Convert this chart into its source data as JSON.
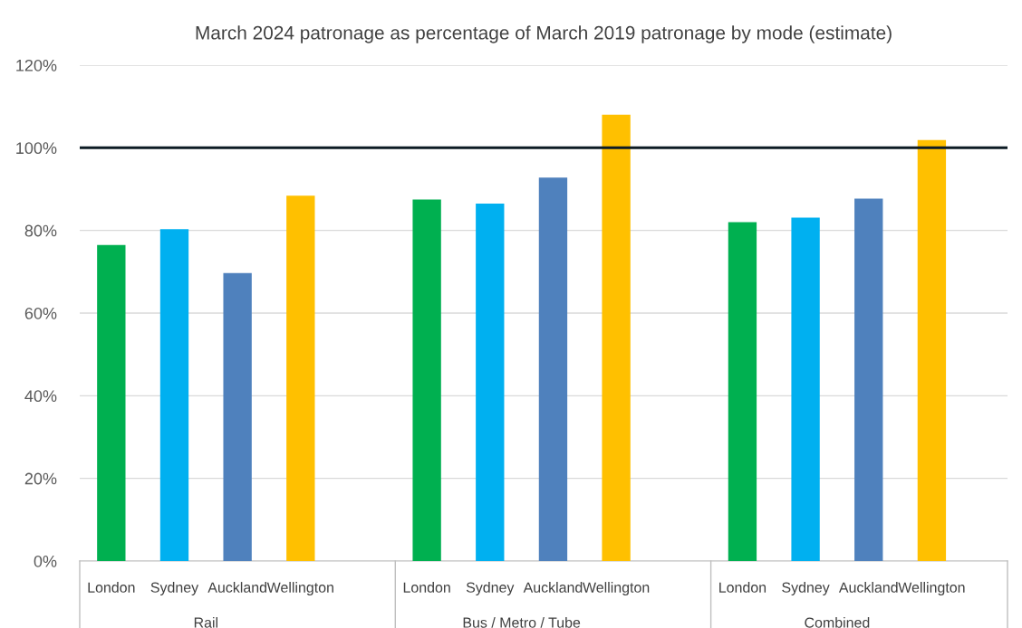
{
  "chart_data": {
    "type": "bar",
    "title": "March 2024 patronage as percentage of March 2019 patronage by mode (estimate)",
    "categories": [
      "London",
      "Sydney",
      "Auckland",
      "Wellington",
      "London",
      "Sydney",
      "Auckland",
      "Wellington",
      "London",
      "Sydney",
      "Auckland",
      "Wellington"
    ],
    "values": [
      76.5,
      80.3,
      69.7,
      88.4,
      87.5,
      86.5,
      92.8,
      108.0,
      82.0,
      83.1,
      87.7,
      101.9
    ],
    "colors": [
      "#00b050",
      "#00b0f0",
      "#4f81bd",
      "#ffc000",
      "#00b050",
      "#00b0f0",
      "#4f81bd",
      "#ffc000",
      "#00b050",
      "#00b0f0",
      "#4f81bd",
      "#ffc000"
    ],
    "annotations": [
      "Rail",
      "Bus / Metro / Tube",
      "Combined"
    ],
    "ylim": [
      0,
      120
    ],
    "yticks": [
      {
        "value": 0,
        "label": "0%"
      },
      {
        "value": 20,
        "label": "20%"
      },
      {
        "value": 40,
        "label": "40%"
      },
      {
        "value": 60,
        "label": "60%"
      },
      {
        "value": 80,
        "label": "80%"
      },
      {
        "value": 100,
        "label": "100%"
      },
      {
        "value": 120,
        "label": "120%"
      }
    ],
    "ref_lines": [
      {
        "axis": "y",
        "value": 100,
        "label": null,
        "color": "#0d1b24"
      }
    ],
    "grid": "y",
    "legend": false
  }
}
